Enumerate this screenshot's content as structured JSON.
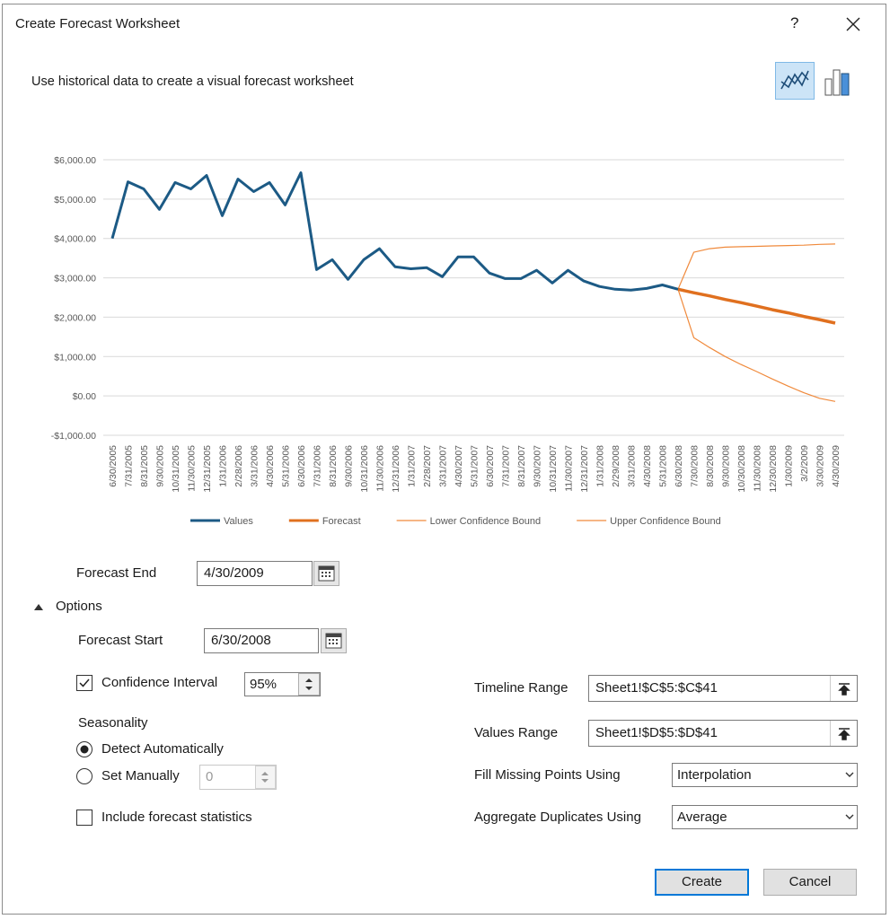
{
  "dialog": {
    "title": "Create Forecast Worksheet",
    "help": "?",
    "description": "Use historical data to create a visual forecast worksheet"
  },
  "chart_data": {
    "type": "line",
    "categories": [
      "6/30/2005",
      "7/31/2005",
      "8/31/2005",
      "9/30/2005",
      "10/31/2005",
      "11/30/2005",
      "12/31/2005",
      "1/31/2006",
      "2/28/2006",
      "3/31/2006",
      "4/30/2006",
      "5/31/2006",
      "6/30/2006",
      "7/31/2006",
      "8/31/2006",
      "9/30/2006",
      "10/31/2006",
      "11/30/2006",
      "12/31/2006",
      "1/31/2007",
      "2/28/2007",
      "3/31/2007",
      "4/30/2007",
      "5/31/2007",
      "6/30/2007",
      "7/31/2007",
      "8/31/2007",
      "9/30/2007",
      "10/31/2007",
      "11/30/2007",
      "12/31/2007",
      "1/31/2008",
      "2/29/2008",
      "3/31/2008",
      "4/30/2008",
      "5/31/2008",
      "6/30/2008",
      "7/30/2008",
      "8/30/2008",
      "9/30/2008",
      "10/30/2008",
      "11/30/2008",
      "12/30/2008",
      "1/30/2009",
      "3/2/2009",
      "3/30/2009",
      "4/30/2009"
    ],
    "series": [
      {
        "name": "Values",
        "color": "#1c5a85",
        "values": [
          4000,
          5440,
          5260,
          4740,
          5420,
          5260,
          5600,
          4580,
          5510,
          5190,
          5420,
          4850,
          5670,
          3210,
          3460,
          2960,
          3460,
          3740,
          3280,
          3230,
          3260,
          3030,
          3530,
          3530,
          3120,
          2980,
          2980,
          3190,
          2870,
          3190,
          2920,
          2780,
          2710,
          2690,
          2730,
          2820,
          2710,
          null,
          null,
          null,
          null,
          null,
          null,
          null,
          null,
          null,
          null
        ]
      },
      {
        "name": "Forecast",
        "color": "#e0701f",
        "values": [
          null,
          null,
          null,
          null,
          null,
          null,
          null,
          null,
          null,
          null,
          null,
          null,
          null,
          null,
          null,
          null,
          null,
          null,
          null,
          null,
          null,
          null,
          null,
          null,
          null,
          null,
          null,
          null,
          null,
          null,
          null,
          null,
          null,
          null,
          null,
          null,
          2710,
          2620,
          2540,
          2450,
          2370,
          2280,
          2190,
          2110,
          2020,
          1940,
          1850
        ]
      },
      {
        "name": "Lower Confidence Bound",
        "color": "#f08a3c",
        "values": [
          null,
          null,
          null,
          null,
          null,
          null,
          null,
          null,
          null,
          null,
          null,
          null,
          null,
          null,
          null,
          null,
          null,
          null,
          null,
          null,
          null,
          null,
          null,
          null,
          null,
          null,
          null,
          null,
          null,
          null,
          null,
          null,
          null,
          null,
          null,
          null,
          2710,
          1480,
          1230,
          1000,
          800,
          620,
          430,
          250,
          80,
          -60,
          -140
        ]
      },
      {
        "name": "Upper Confidence Bound",
        "color": "#f08a3c",
        "values": [
          null,
          null,
          null,
          null,
          null,
          null,
          null,
          null,
          null,
          null,
          null,
          null,
          null,
          null,
          null,
          null,
          null,
          null,
          null,
          null,
          null,
          null,
          null,
          null,
          null,
          null,
          null,
          null,
          null,
          null,
          null,
          null,
          null,
          null,
          null,
          null,
          2710,
          3650,
          3740,
          3780,
          3790,
          3800,
          3810,
          3820,
          3830,
          3850,
          3860
        ]
      }
    ],
    "ylim": [
      -1000,
      6000
    ],
    "yticks": [
      {
        "value": -1000,
        "label": "-$1,000.00"
      },
      {
        "value": 0,
        "label": "$0.00"
      },
      {
        "value": 1000,
        "label": "$1,000.00"
      },
      {
        "value": 2000,
        "label": "$2,000.00"
      },
      {
        "value": 3000,
        "label": "$3,000.00"
      },
      {
        "value": 4000,
        "label": "$4,000.00"
      },
      {
        "value": 5000,
        "label": "$5,000.00"
      },
      {
        "value": 6000,
        "label": "$6,000.00"
      }
    ],
    "grid": true,
    "legend": "bottom"
  },
  "form": {
    "forecast_end": {
      "label": "Forecast End",
      "value": "4/30/2009"
    },
    "options": {
      "label": "Options",
      "expanded": true
    },
    "forecast_start": {
      "label": "Forecast Start",
      "value": "6/30/2008"
    },
    "confidence_interval": {
      "label": "Confidence Interval",
      "checked": true,
      "value": "95%"
    },
    "seasonality": {
      "label": "Seasonality",
      "options": [
        {
          "label": "Detect Automatically",
          "selected": true
        },
        {
          "label": "Set Manually",
          "selected": false,
          "value": "0"
        }
      ]
    },
    "include_statistics": {
      "label": "Include forecast statistics",
      "checked": false
    },
    "timeline_range": {
      "label": "Timeline Range",
      "value": "Sheet1!$C$5:$C$41"
    },
    "values_range": {
      "label": "Values Range",
      "value": "Sheet1!$D$5:$D$41"
    },
    "fill_missing": {
      "label": "Fill Missing Points Using",
      "value": "Interpolation"
    },
    "aggregate": {
      "label": "Aggregate Duplicates Using",
      "value": "Average"
    },
    "buttons": [
      "Create",
      "Cancel"
    ]
  }
}
